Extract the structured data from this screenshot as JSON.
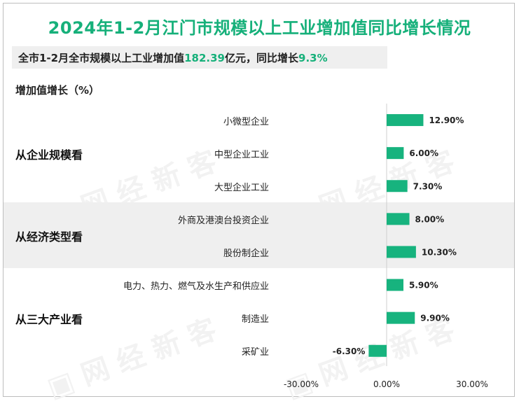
{
  "title": "2024年1-2月江门市规模以上工业增加值同比增长情况",
  "summary": {
    "prefix": "全市1-2月全市规模以上工业增加值",
    "value": "182.39",
    "mid": "亿元，同比增长",
    "growth": "9.3%"
  },
  "subtitle": "增加值增长（%）",
  "groups": [
    {
      "label": "从企业规模看",
      "shaded": false
    },
    {
      "label": "从经济类型看",
      "shaded": true
    },
    {
      "label": "从三大产业看",
      "shaded": false
    }
  ],
  "colors": {
    "bar": "#17b37e",
    "accent": "#16b07a",
    "band": "#efefef",
    "axis": "#222222"
  },
  "chart_data": {
    "type": "bar",
    "orientation": "horizontal",
    "categories": [
      "小微型企业",
      "中型企业工业",
      "大型企业工业",
      "外商及港澳台投资企业",
      "股份制企业",
      "电力、热力、燃气及水生产和供应业",
      "制造业",
      "采矿业"
    ],
    "category_groups": [
      0,
      0,
      0,
      1,
      1,
      2,
      2,
      2
    ],
    "values": [
      12.9,
      6.0,
      7.3,
      8.0,
      10.3,
      5.9,
      9.9,
      -6.3
    ],
    "value_labels": [
      "12.90%",
      "6.00%",
      "7.30%",
      "8.00%",
      "10.30%",
      "5.90%",
      "9.90%",
      "-6.30%"
    ],
    "xlim": [
      -30,
      30
    ],
    "xticks": [
      "-30.00%",
      "0.00%",
      "30.00%"
    ],
    "ylabel": "增加值增长（%）",
    "title": "2024年1-2月江门市规模以上工业增加值同比增长情况",
    "grid": false,
    "legend": "none"
  }
}
